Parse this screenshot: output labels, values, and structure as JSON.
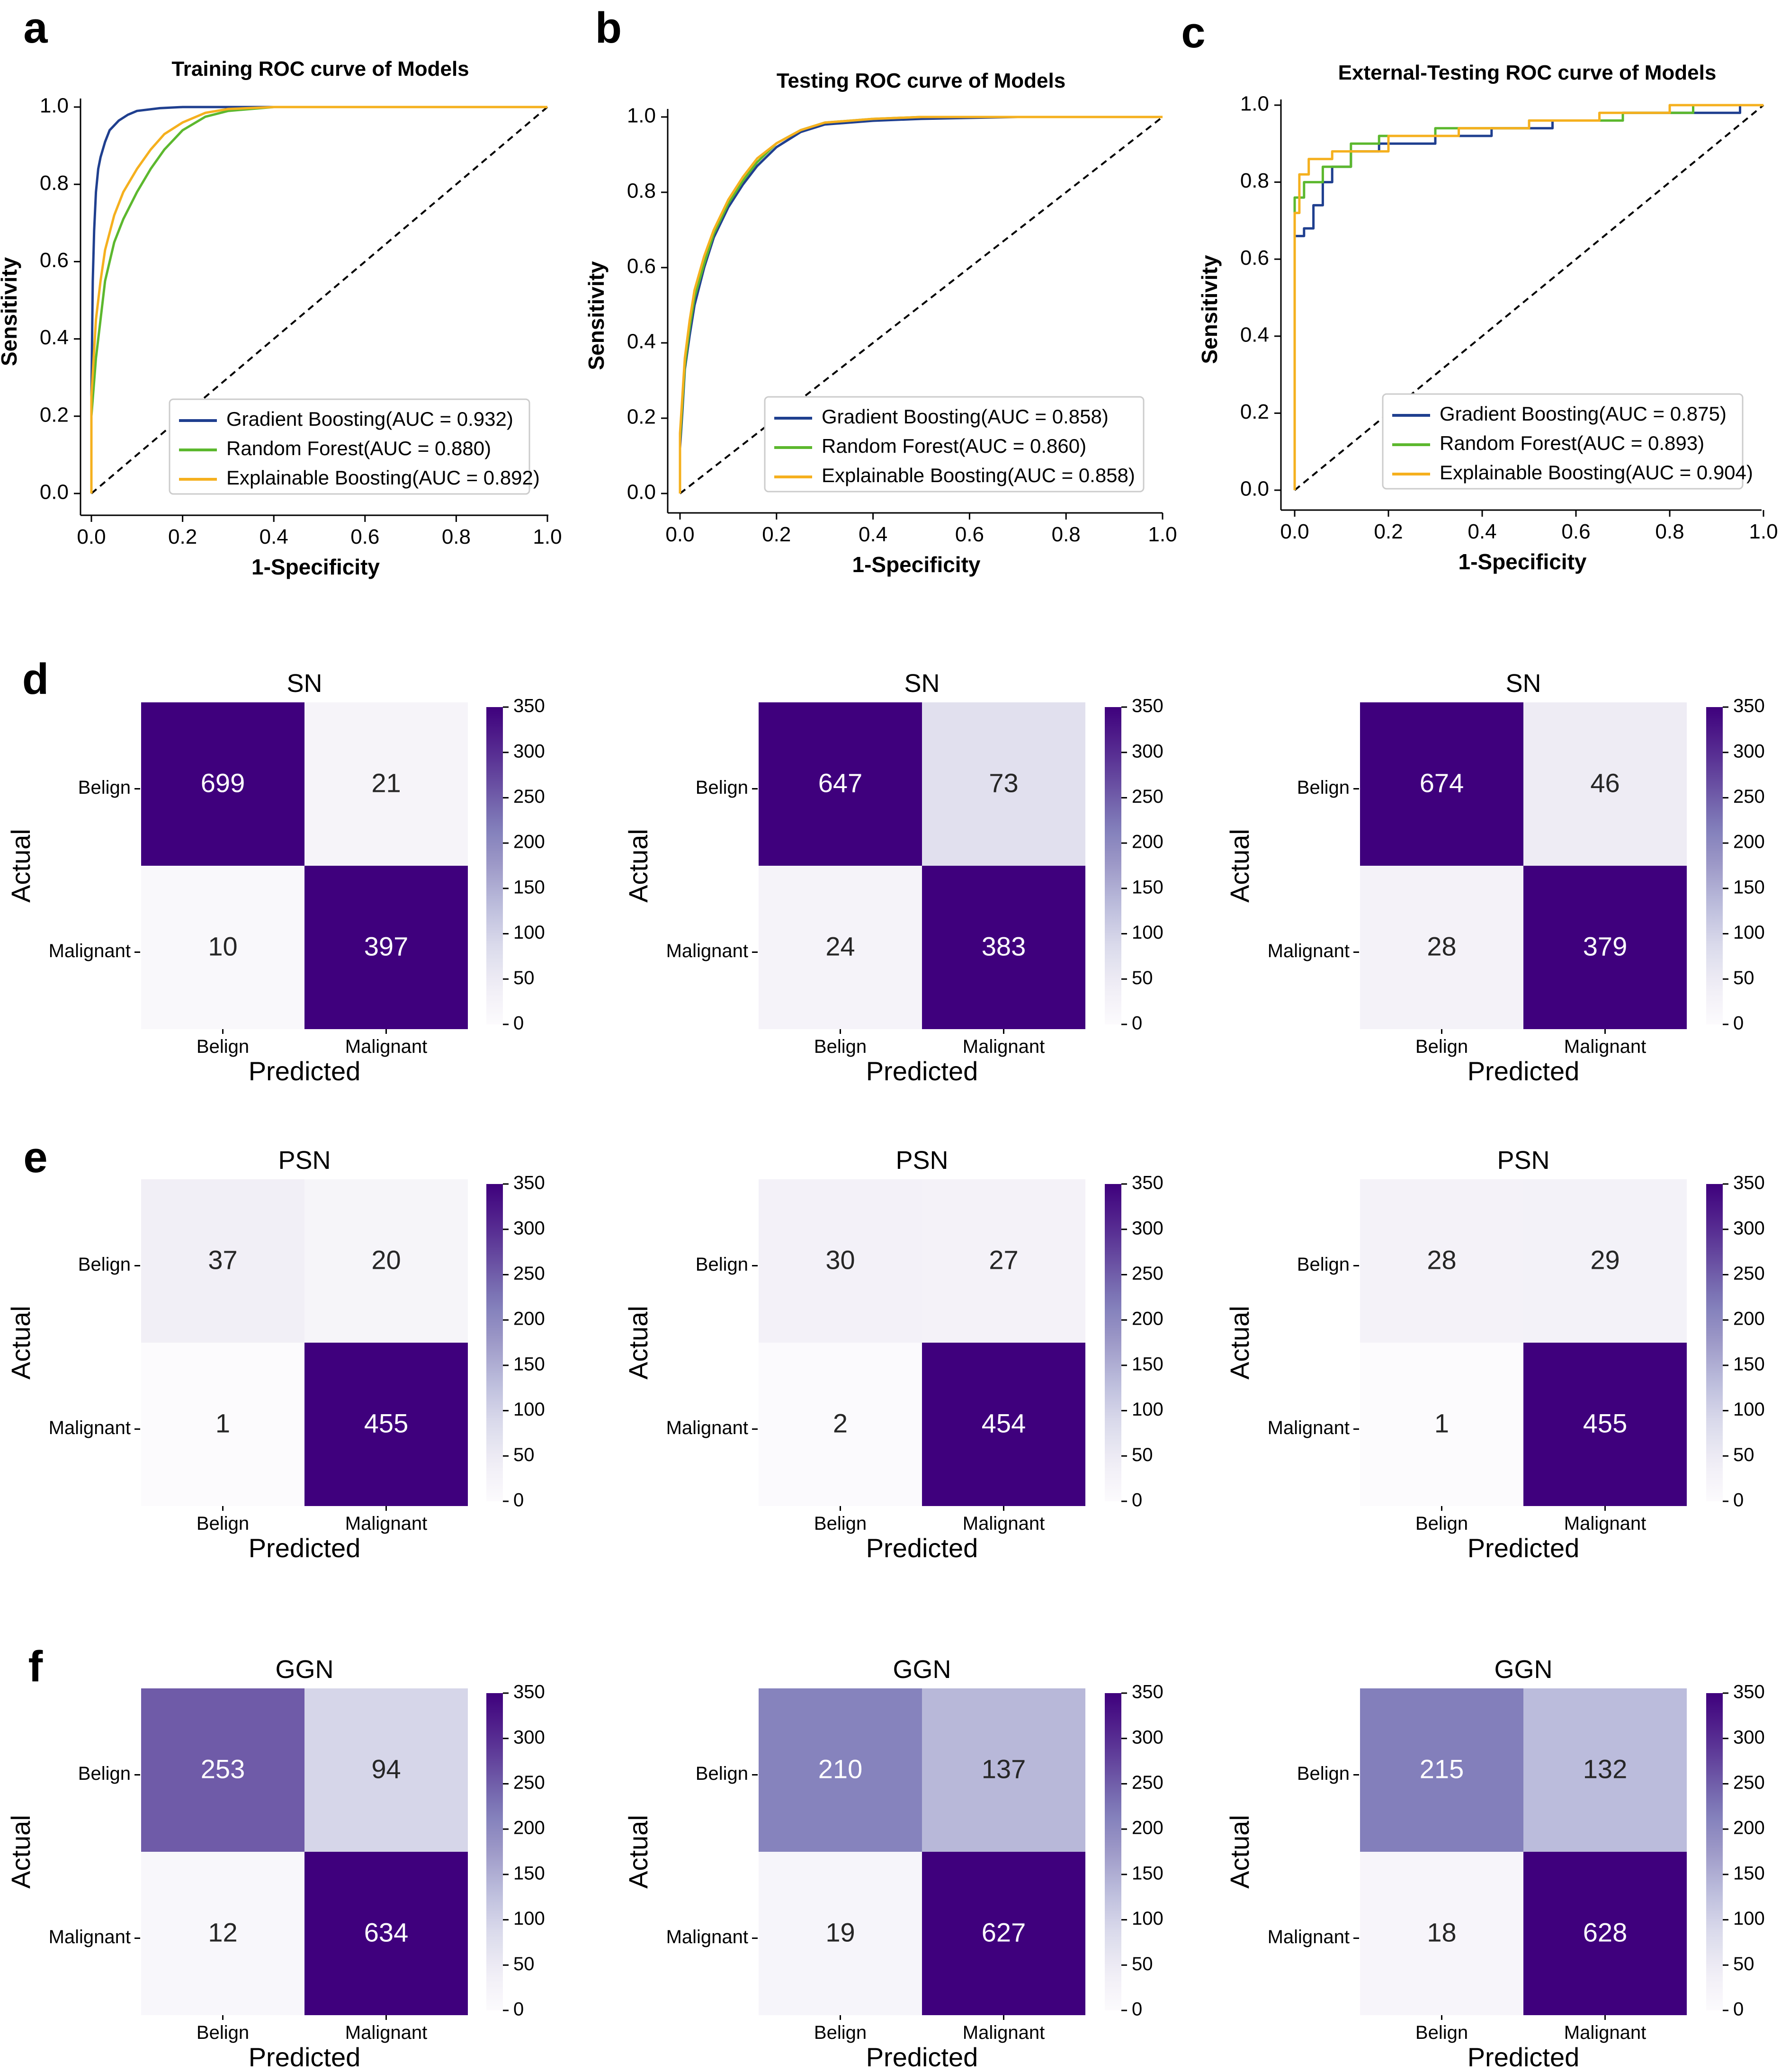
{
  "figure": {
    "panel_letters": [
      "a",
      "b",
      "c",
      "d",
      "e",
      "f"
    ]
  },
  "chart_data": [
    {
      "type": "line",
      "panel": "a",
      "title": "Training ROC curve of Models",
      "xlabel": "1-Specificity",
      "ylabel": "Sensitivity",
      "xlim": [
        0,
        1
      ],
      "ylim": [
        0,
        1
      ],
      "xticks": [
        "0.0",
        "0.2",
        "0.4",
        "0.6",
        "0.8",
        "1.0"
      ],
      "yticks": [
        "0.0",
        "0.2",
        "0.4",
        "0.6",
        "0.8",
        "1.0"
      ],
      "legend_position": "bottom-right",
      "diagonal": true,
      "series": [
        {
          "name": "Gradient Boosting(AUC = 0.932)",
          "color": "#1f3f8f",
          "x": [
            0,
            0,
            0.003,
            0.006,
            0.01,
            0.015,
            0.02,
            0.03,
            0.04,
            0.06,
            0.08,
            0.1,
            0.15,
            0.2,
            0.3,
            1.0
          ],
          "y": [
            0,
            0.25,
            0.55,
            0.68,
            0.78,
            0.84,
            0.87,
            0.91,
            0.94,
            0.965,
            0.98,
            0.99,
            0.997,
            1.0,
            1.0,
            1.0
          ]
        },
        {
          "name": "Random Forest(AUC = 0.880)",
          "color": "#5cb82e",
          "x": [
            0,
            0,
            0.01,
            0.02,
            0.03,
            0.05,
            0.07,
            0.1,
            0.13,
            0.16,
            0.2,
            0.25,
            0.3,
            0.4,
            1.0
          ],
          "y": [
            0,
            0.2,
            0.35,
            0.45,
            0.55,
            0.65,
            0.71,
            0.78,
            0.84,
            0.89,
            0.94,
            0.975,
            0.99,
            1.0,
            1.0
          ]
        },
        {
          "name": "Explainable Boosting(AUC = 0.892)",
          "color": "#f5b01e",
          "x": [
            0,
            0,
            0.01,
            0.02,
            0.03,
            0.05,
            0.07,
            0.1,
            0.13,
            0.16,
            0.2,
            0.25,
            0.3,
            0.4,
            1.0
          ],
          "y": [
            0,
            0.25,
            0.45,
            0.55,
            0.63,
            0.72,
            0.78,
            0.84,
            0.89,
            0.93,
            0.96,
            0.985,
            0.995,
            1.0,
            1.0
          ]
        }
      ]
    },
    {
      "type": "line",
      "panel": "b",
      "title": "Testing ROC curve of Models",
      "xlabel": "1-Specificity",
      "ylabel": "Sensitivity",
      "xlim": [
        0,
        1
      ],
      "ylim": [
        0,
        1
      ],
      "xticks": [
        "0.0",
        "0.2",
        "0.4",
        "0.6",
        "0.8",
        "1.0"
      ],
      "yticks": [
        "0.0",
        "0.2",
        "0.4",
        "0.6",
        "0.8",
        "1.0"
      ],
      "legend_position": "bottom-right",
      "diagonal": true,
      "series": [
        {
          "name": "Gradient Boosting(AUC = 0.858)",
          "color": "#1f3f8f",
          "x": [
            0,
            0,
            0.005,
            0.01,
            0.02,
            0.03,
            0.05,
            0.07,
            0.1,
            0.13,
            0.16,
            0.2,
            0.25,
            0.3,
            0.4,
            0.5,
            0.7,
            1.0
          ],
          "y": [
            0,
            0.12,
            0.22,
            0.33,
            0.42,
            0.5,
            0.6,
            0.68,
            0.76,
            0.82,
            0.87,
            0.92,
            0.96,
            0.98,
            0.99,
            0.995,
            1.0,
            1.0
          ]
        },
        {
          "name": "Random Forest(AUC = 0.860)",
          "color": "#5cb82e",
          "x": [
            0,
            0,
            0.005,
            0.01,
            0.02,
            0.03,
            0.05,
            0.07,
            0.1,
            0.13,
            0.16,
            0.2,
            0.25,
            0.3,
            0.4,
            0.5,
            0.7,
            1.0
          ],
          "y": [
            0,
            0.14,
            0.24,
            0.34,
            0.44,
            0.52,
            0.61,
            0.69,
            0.77,
            0.83,
            0.88,
            0.93,
            0.965,
            0.985,
            0.995,
            1.0,
            1.0,
            1.0
          ]
        },
        {
          "name": "Explainable Boosting(AUC = 0.858)",
          "color": "#f5b01e",
          "x": [
            0,
            0,
            0.005,
            0.01,
            0.02,
            0.03,
            0.05,
            0.07,
            0.1,
            0.13,
            0.16,
            0.2,
            0.25,
            0.3,
            0.4,
            0.5,
            0.7,
            1.0
          ],
          "y": [
            0,
            0.16,
            0.26,
            0.36,
            0.46,
            0.54,
            0.63,
            0.7,
            0.78,
            0.84,
            0.89,
            0.93,
            0.965,
            0.985,
            0.995,
            1.0,
            1.0,
            1.0
          ]
        }
      ]
    },
    {
      "type": "line",
      "panel": "c",
      "title": "External-Testing ROC curve of Models",
      "xlabel": "1-Specificity",
      "ylabel": "Sensitivity",
      "xlim": [
        0,
        1
      ],
      "ylim": [
        0,
        1
      ],
      "xticks": [
        "0.0",
        "0.2",
        "0.4",
        "0.6",
        "0.8",
        "1.0"
      ],
      "yticks": [
        "0.0",
        "0.2",
        "0.4",
        "0.6",
        "0.8",
        "1.0"
      ],
      "legend_position": "bottom-right",
      "diagonal": true,
      "series": [
        {
          "name": "Gradient Boosting(AUC = 0.875)",
          "color": "#1f3f8f",
          "x": [
            0,
            0,
            0.02,
            0.02,
            0.04,
            0.04,
            0.06,
            0.06,
            0.08,
            0.08,
            0.12,
            0.12,
            0.18,
            0.18,
            0.3,
            0.3,
            0.42,
            0.42,
            0.55,
            0.55,
            0.7,
            0.7,
            0.95,
            0.95,
            1.0
          ],
          "y": [
            0,
            0.66,
            0.66,
            0.68,
            0.68,
            0.74,
            0.74,
            0.8,
            0.8,
            0.84,
            0.84,
            0.88,
            0.88,
            0.9,
            0.9,
            0.92,
            0.92,
            0.94,
            0.94,
            0.96,
            0.96,
            0.98,
            0.98,
            1.0,
            1.0
          ]
        },
        {
          "name": "Random Forest(AUC = 0.893)",
          "color": "#5cb82e",
          "x": [
            0,
            0,
            0.02,
            0.02,
            0.06,
            0.06,
            0.12,
            0.12,
            0.18,
            0.18,
            0.3,
            0.3,
            0.5,
            0.5,
            0.7,
            0.7,
            0.85,
            0.85,
            1.0
          ],
          "y": [
            0,
            0.76,
            0.76,
            0.8,
            0.8,
            0.84,
            0.84,
            0.9,
            0.9,
            0.92,
            0.92,
            0.94,
            0.94,
            0.96,
            0.96,
            0.98,
            0.98,
            1.0,
            1.0
          ]
        },
        {
          "name": "Explainable Boosting(AUC = 0.904)",
          "color": "#f5b01e",
          "x": [
            0,
            0,
            0.01,
            0.01,
            0.03,
            0.03,
            0.08,
            0.08,
            0.2,
            0.2,
            0.35,
            0.35,
            0.5,
            0.5,
            0.65,
            0.65,
            0.8,
            0.8,
            1.0
          ],
          "y": [
            0,
            0.72,
            0.72,
            0.82,
            0.82,
            0.86,
            0.86,
            0.88,
            0.88,
            0.92,
            0.92,
            0.94,
            0.94,
            0.96,
            0.96,
            0.98,
            0.98,
            1.0,
            1.0
          ]
        }
      ]
    },
    {
      "type": "heatmap",
      "panel": "d",
      "title": "SN",
      "xlabel": "Predicted",
      "ylabel": "Actual",
      "rows": [
        "Belign",
        "Malignant"
      ],
      "cols": [
        "Belign",
        "Malignant"
      ],
      "colorbar": {
        "min": 0,
        "max": 350,
        "ticks": [
          "350",
          "300",
          "250",
          "200",
          "150",
          "100",
          "50",
          "0"
        ]
      },
      "matrices": [
        [
          [
            699,
            21
          ],
          [
            10,
            397
          ]
        ],
        [
          [
            647,
            73
          ],
          [
            24,
            383
          ]
        ],
        [
          [
            674,
            46
          ],
          [
            28,
            379
          ]
        ]
      ]
    },
    {
      "type": "heatmap",
      "panel": "e",
      "title": "PSN",
      "xlabel": "Predicted",
      "ylabel": "Actual",
      "rows": [
        "Belign",
        "Malignant"
      ],
      "cols": [
        "Belign",
        "Malignant"
      ],
      "colorbar": {
        "min": 0,
        "max": 350,
        "ticks": [
          "350",
          "300",
          "250",
          "200",
          "150",
          "100",
          "50",
          "0"
        ]
      },
      "matrices": [
        [
          [
            37,
            20
          ],
          [
            1,
            455
          ]
        ],
        [
          [
            30,
            27
          ],
          [
            2,
            454
          ]
        ],
        [
          [
            28,
            29
          ],
          [
            1,
            455
          ]
        ]
      ]
    },
    {
      "type": "heatmap",
      "panel": "f",
      "title": "GGN",
      "xlabel": "Predicted",
      "ylabel": "Actual",
      "rows": [
        "Belign",
        "Malignant"
      ],
      "cols": [
        "Belign",
        "Malignant"
      ],
      "colorbar": {
        "min": 0,
        "max": 350,
        "ticks": [
          "350",
          "300",
          "250",
          "200",
          "150",
          "100",
          "50",
          "0"
        ]
      },
      "matrices": [
        [
          [
            253,
            94
          ],
          [
            12,
            634
          ]
        ],
        [
          [
            210,
            137
          ],
          [
            19,
            627
          ]
        ],
        [
          [
            215,
            132
          ],
          [
            18,
            628
          ]
        ]
      ]
    }
  ]
}
